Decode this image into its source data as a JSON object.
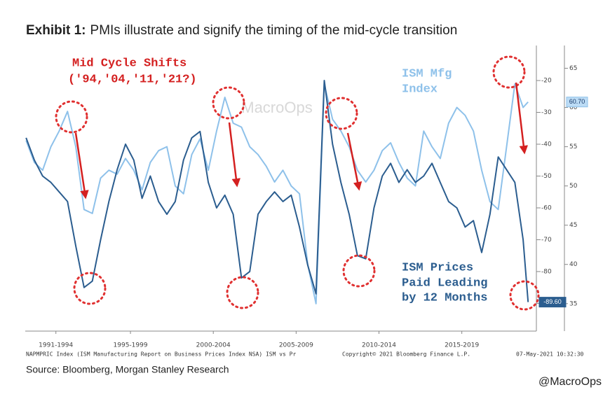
{
  "chart_data": {
    "type": "line",
    "title_label": "Exhibit 1:",
    "title": "PMIs illustrate and signify the timing of the mid-cycle transition",
    "annotations": {
      "shifts": [
        "Mid Cycle Shifts",
        "('94,'04,'11,'21?)"
      ],
      "mfg": [
        "ISM Mfg",
        "Index"
      ],
      "prices": [
        "ISM Prices",
        "Paid Leading",
        "by 12 Months"
      ]
    },
    "watermark": "MacroOps",
    "footer_left": "NAPMPRIC Index (ISM Manufacturing Report on Business Prices Index NSA) ISM vs Pr",
    "footer_mid": "Copyright© 2021 Bloomberg Finance L.P.",
    "footer_right": "07-May-2021 10:32:30",
    "source": "Source: Bloomberg, Morgan Stanley Research",
    "credit": "@MacroOps",
    "x": [
      1991.2,
      1991.7,
      1992.2,
      1992.7,
      1993.2,
      1993.7,
      1994.2,
      1994.7,
      1995.2,
      1995.7,
      1996.2,
      1996.7,
      1997.2,
      1997.7,
      1998.2,
      1998.7,
      1999.2,
      1999.7,
      2000.2,
      2000.7,
      2001.2,
      2001.7,
      2002.2,
      2002.7,
      2003.2,
      2003.7,
      2004.2,
      2004.7,
      2005.2,
      2005.7,
      2006.2,
      2006.7,
      2007.2,
      2007.7,
      2008.2,
      2008.7,
      2009.2,
      2009.7,
      2010.2,
      2010.7,
      2011.2,
      2011.7,
      2012.2,
      2012.7,
      2013.2,
      2013.7,
      2014.2,
      2014.7,
      2015.2,
      2015.7,
      2016.2,
      2016.7,
      2017.2,
      2017.7,
      2018.2,
      2018.7,
      2019.2,
      2019.7,
      2020.2,
      2020.7,
      2021.2,
      2021.5
    ],
    "xlim": [
      1991.15,
      2022.0
    ],
    "xticks": [
      {
        "value": 1993,
        "label": "1991-1994"
      },
      {
        "value": 1997.5,
        "label": "1995-1999"
      },
      {
        "value": 2002.5,
        "label": "2000-2004"
      },
      {
        "value": 2007.5,
        "label": "2005-2009"
      },
      {
        "value": 2012.5,
        "label": "2010-2014"
      },
      {
        "value": 2017.5,
        "label": "2015-2019"
      }
    ],
    "ylim": [
      31.5,
      67.9
    ],
    "yticks": [
      35,
      40,
      45,
      50,
      55,
      60,
      65
    ],
    "y2lim": [
      -98.7,
      -9
    ],
    "y2ticks": [
      -20,
      -30,
      -40,
      -50,
      -60,
      -70,
      -80,
      -90
    ],
    "series": [
      {
        "color": "#8ec1ea",
        "axis": "y",
        "end_label": "60.70",
        "values": [
          55.8,
          53,
          52,
          55,
          57,
          59.5,
          55,
          47,
          46.5,
          51,
          52,
          51.5,
          53.5,
          52,
          49.5,
          53,
          54.5,
          55,
          50,
          49,
          54,
          56,
          52,
          57,
          61.3,
          58,
          57.5,
          55,
          54,
          52.5,
          50.5,
          52,
          50,
          49,
          40,
          35,
          63,
          58.5,
          57,
          55,
          52,
          50.5,
          52,
          54.5,
          55.5,
          53,
          51,
          50,
          57,
          55,
          53.5,
          58,
          60,
          59,
          57,
          52,
          48,
          47,
          55,
          63,
          60,
          60.7
        ]
      },
      {
        "color": "#2b5d8f",
        "axis": "y2",
        "end_label": "-89.60",
        "values": [
          -38,
          -45,
          -50,
          -52,
          -55,
          -58,
          -72,
          -85,
          -83,
          -70,
          -58,
          -48,
          -40,
          -45,
          -57,
          -50,
          -58,
          -62,
          -58,
          -45,
          -38,
          -36,
          -52,
          -60,
          -56,
          -62,
          -82,
          -80,
          -62,
          -58,
          -55,
          -58,
          -56,
          -66,
          -78,
          -87,
          -20,
          -40,
          -52,
          -62,
          -75,
          -76,
          -60,
          -50,
          -46,
          -52,
          -48,
          -52,
          -50,
          -46,
          -52,
          -58,
          -60,
          -66,
          -64,
          -74,
          -62,
          -44,
          -48,
          -52,
          -70,
          -89.6
        ]
      }
    ]
  }
}
